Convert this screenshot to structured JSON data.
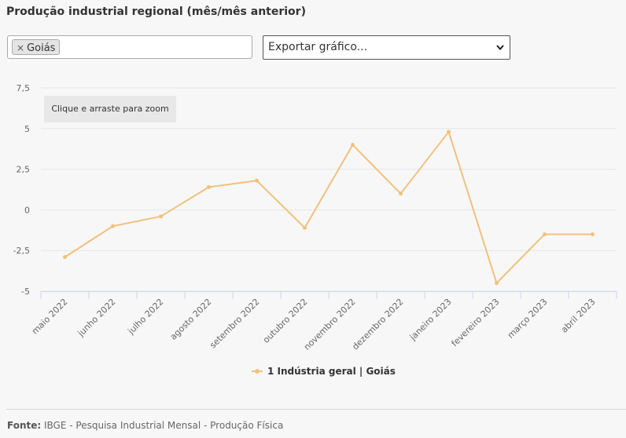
{
  "title": "Produção industrial regional (mês/mês anterior)",
  "filter": {
    "chip_label": "Goiás",
    "chip_remove": "×"
  },
  "export": {
    "label": "Exportar gráfico...",
    "chevron": "❯"
  },
  "zoom_hint": "Clique e arraste para zoom",
  "footer": {
    "label": "Fonte:",
    "text": "IBGE - Pesquisa Industrial Mensal - Produção Física"
  },
  "colors": {
    "line": "#f0c17e",
    "grid": "#e6e6e6",
    "axis": "#ccd6eb"
  },
  "chart_data": {
    "type": "line",
    "categories": [
      "maio 2022",
      "junho 2022",
      "julho 2022",
      "agosto 2022",
      "setembro 2022",
      "outubro 2022",
      "novembro 2022",
      "dezembro 2022",
      "janeiro 2023",
      "fevereiro 2023",
      "março 2023",
      "abril 2023"
    ],
    "series": [
      {
        "name": "1 Indústria geral | Goiás",
        "values": [
          -2.9,
          -1.0,
          -0.4,
          1.4,
          1.8,
          -1.1,
          4.0,
          1.0,
          4.8,
          -4.5,
          -1.5,
          -1.5
        ]
      }
    ],
    "yticks": [
      "7,5",
      "5",
      "2,5",
      "0",
      "-2,5",
      "-5"
    ],
    "ylim": [
      -5,
      7.5
    ],
    "grid": true,
    "legend_position": "bottom-center"
  }
}
